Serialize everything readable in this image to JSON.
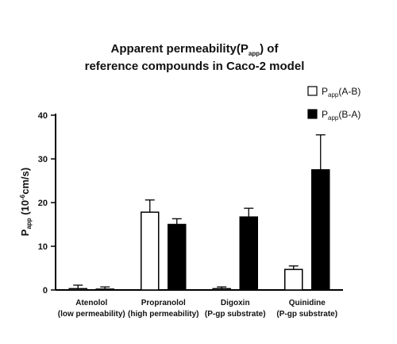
{
  "chart_data": {
    "type": "bar",
    "title": {
      "line1": {
        "pre": "Apparent permeability(P",
        "sub": "app",
        "post": ") of"
      },
      "line2": "reference compounds in Caco-2 model"
    },
    "ylabel": {
      "main": "P",
      "sub": "app",
      "rest": " (10",
      "sup": "-6",
      "end": "cm/s)"
    },
    "xlabel": "",
    "ylim": [
      0,
      40
    ],
    "yticks": [
      "0",
      "10",
      "20",
      "30",
      "40"
    ],
    "categories": [
      {
        "line1": "Atenolol",
        "line2": "(low permeability)"
      },
      {
        "line1": "Propranolol",
        "line2": "(high permeability)"
      },
      {
        "line1": "Digoxin",
        "line2": "(P-gp substrate)"
      },
      {
        "line1": "Quinidine",
        "line2": "(P-gp substrate)"
      }
    ],
    "series": [
      {
        "name": {
          "main": "P",
          "sub": "app",
          "rest": "(A-B)"
        },
        "fill": "#ffffff",
        "stroke": "#000000",
        "values": [
          0.3,
          17.8,
          0.3,
          4.7
        ],
        "errors": [
          0.8,
          2.8,
          0.4,
          0.8
        ]
      },
      {
        "name": {
          "main": "P",
          "sub": "app",
          "rest": "(B-A)"
        },
        "fill": "#000000",
        "stroke": "#000000",
        "values": [
          0.2,
          15.0,
          16.7,
          27.5
        ],
        "errors": [
          0.5,
          1.3,
          2.0,
          8.0
        ]
      }
    ],
    "legend_position": "top-right",
    "grid": false
  }
}
